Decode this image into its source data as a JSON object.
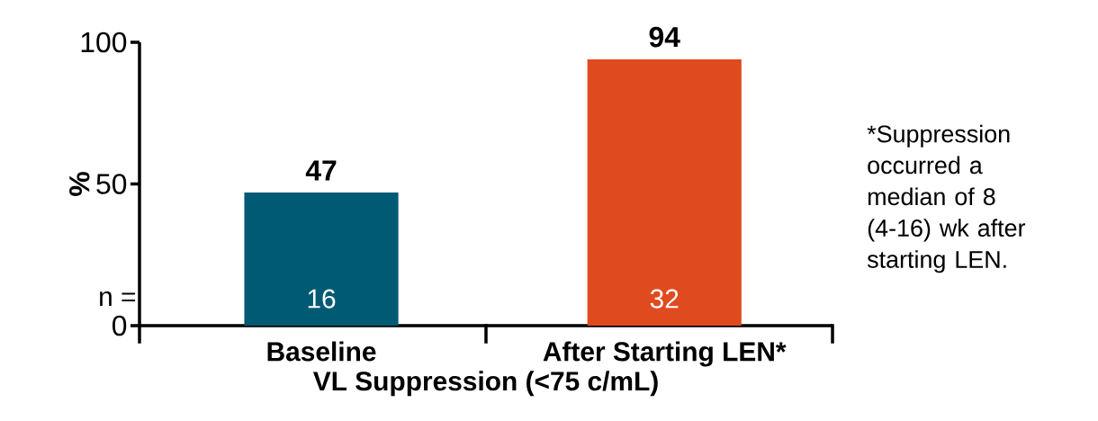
{
  "chart_data": {
    "type": "bar",
    "categories": [
      "Baseline",
      "After Starting LEN*"
    ],
    "values": [
      47,
      94
    ],
    "colors": [
      "#005a73",
      "#e04a1f"
    ],
    "ylabel": "%",
    "xlabel": "VL Suppression (<75 c/mL)",
    "ylim": [
      0,
      100
    ],
    "yticks": [
      0,
      50,
      100
    ],
    "data_labels": true,
    "grid": false,
    "annotations": [
      "n =",
      "16",
      "32",
      "*Suppression occurred a median of 8 (4-16) wk after starting LEN."
    ]
  }
}
